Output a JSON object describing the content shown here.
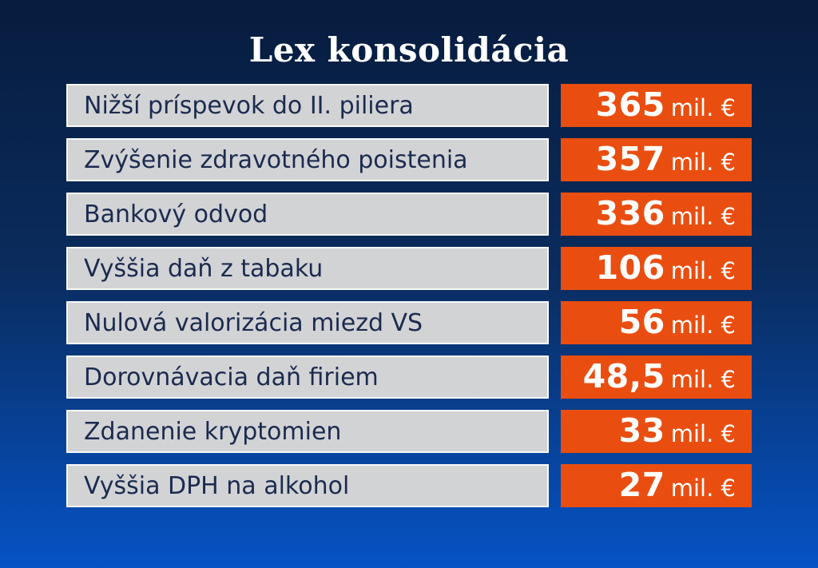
{
  "title": "Lex konsolidácia",
  "unit_label": "mil. €",
  "colors": {
    "background_top": "#071C3E",
    "background_bottom": "#0553C6",
    "label_box_gray": "#D2D3D5",
    "label_text_navy": "#1B2B4F",
    "value_box_orange": "#E94E10",
    "text_white": "#FFFFFF"
  },
  "rows": [
    {
      "label": "Nižší príspevok do II. piliera",
      "value": "365",
      "unit": "mil. €"
    },
    {
      "label": "Zvýšenie zdravotného poistenia",
      "value": "357",
      "unit": "mil. €"
    },
    {
      "label": "Bankový odvod",
      "value": "336",
      "unit": "mil. €"
    },
    {
      "label": "Vyššia daň z tabaku",
      "value": "106",
      "unit": "mil. €"
    },
    {
      "label": "Nulová valorizácia miezd VS",
      "value": "56",
      "unit": "mil. €"
    },
    {
      "label": "Dorovnávacia daň firiem",
      "value": "48,5",
      "unit": "mil. €"
    },
    {
      "label": "Zdanenie kryptomien",
      "value": "33",
      "unit": "mil. €"
    },
    {
      "label": "Vyššia DPH na alkohol",
      "value": "27",
      "unit": "mil. €"
    }
  ],
  "chart_data": {
    "type": "table",
    "title": "Lex konsolidácia",
    "unit": "mil. €",
    "categories": [
      "Nižší príspevok do II. piliera",
      "Zvýšenie zdravotného poistenia",
      "Bankový odvod",
      "Vyššia daň z tabaku",
      "Nulová valorizácia miezd VS",
      "Dorovnávacia daň firiem",
      "Zdanenie kryptomien",
      "Vyššia DPH na alkohol"
    ],
    "values": [
      365,
      357,
      336,
      106,
      56,
      48.5,
      33,
      27
    ],
    "value_labels": [
      "365",
      "357",
      "336",
      "106",
      "56",
      "48,5",
      "33",
      "27"
    ],
    "legend": "none",
    "layout": "two-column rows: category label (gray box) + value (orange box), values right-aligned"
  }
}
